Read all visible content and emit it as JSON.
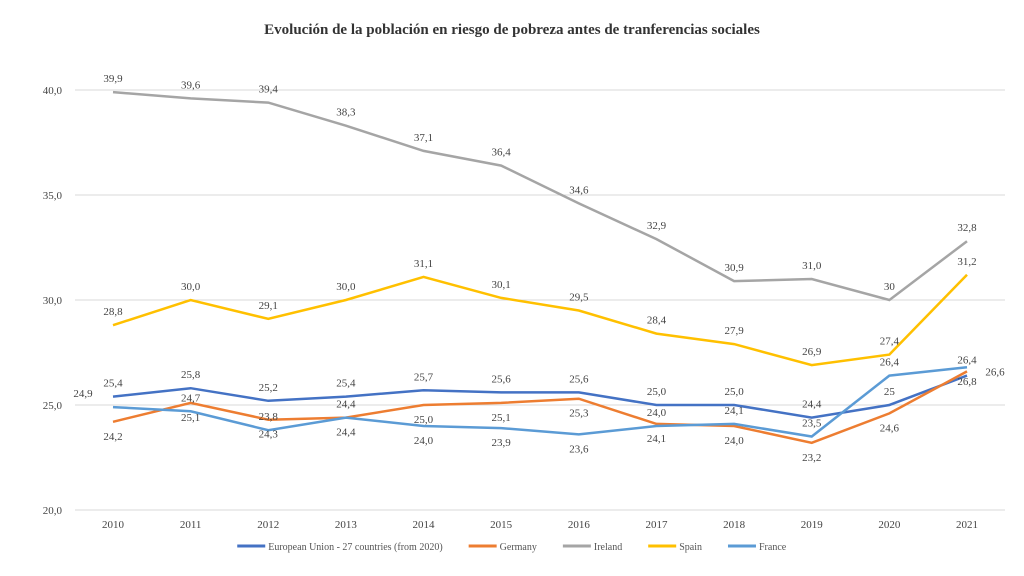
{
  "chart_data": {
    "type": "line",
    "title": "Evolución de la población en riesgo de pobreza antes de tranferencias sociales",
    "xlabel": "",
    "ylabel": "",
    "categories": [
      "2010",
      "2011",
      "2012",
      "2013",
      "2014",
      "2015",
      "2016",
      "2017",
      "2018",
      "2019",
      "2020",
      "2021"
    ],
    "ylim": [
      20,
      40
    ],
    "yticks": [
      "20,0",
      "25,0",
      "30,0",
      "35,0",
      "40,0"
    ],
    "grid": true,
    "legend": "bottom",
    "series": [
      {
        "name": "European Union - 27 countries (from 2020)",
        "color": "#4472C4",
        "values": [
          25.4,
          25.8,
          25.2,
          25.4,
          25.7,
          25.6,
          25.6,
          25.0,
          25.0,
          24.4,
          25,
          26.4
        ],
        "labels": [
          "25,4",
          "25,8",
          "25,2",
          "25,4",
          "25,7",
          "25,6",
          "25,6",
          "25,0",
          "25,0",
          "24,4",
          "25",
          "26,4"
        ]
      },
      {
        "name": "Germany",
        "color": "#ED7D31",
        "values": [
          24.2,
          25.1,
          24.3,
          24.4,
          25.0,
          25.1,
          25.3,
          24.1,
          24.0,
          23.2,
          24.6,
          26.6
        ],
        "labels": [
          "24,2",
          "25,1",
          "24,3",
          "24,4",
          "25,0",
          "25,1",
          "25,3",
          "24,1",
          "24,0",
          "23,2",
          "24,6",
          "26,6"
        ]
      },
      {
        "name": "Ireland",
        "color": "#A5A5A5",
        "values": [
          39.9,
          39.6,
          39.4,
          38.3,
          37.1,
          36.4,
          34.6,
          32.9,
          30.9,
          31.0,
          30,
          32.8
        ],
        "labels": [
          "39,9",
          "39,6",
          "39,4",
          "38,3",
          "37,1",
          "36,4",
          "34,6",
          "32,9",
          "30,9",
          "31,0",
          "30",
          "32,8"
        ]
      },
      {
        "name": "Spain",
        "color": "#FFC000",
        "values": [
          28.8,
          30.0,
          29.1,
          30.0,
          31.1,
          30.1,
          29.5,
          28.4,
          27.9,
          26.9,
          27.4,
          31.2
        ],
        "labels": [
          "28,8",
          "30,0",
          "29,1",
          "30,0",
          "31,1",
          "30,1",
          "29,5",
          "28,4",
          "27,9",
          "26,9",
          "27,4",
          "31,2"
        ]
      },
      {
        "name": "France",
        "color": "#5B9BD5",
        "values": [
          24.9,
          24.7,
          23.8,
          24.4,
          24.0,
          23.9,
          23.6,
          24.0,
          24.1,
          23.5,
          26.4,
          26.8
        ],
        "labels": [
          "24,9",
          "24,7",
          "23,8",
          "24,4",
          "24,0",
          "23,9",
          "23,6",
          "24,0",
          "24,1",
          "23,5",
          "26,4",
          "26,8"
        ]
      }
    ]
  }
}
